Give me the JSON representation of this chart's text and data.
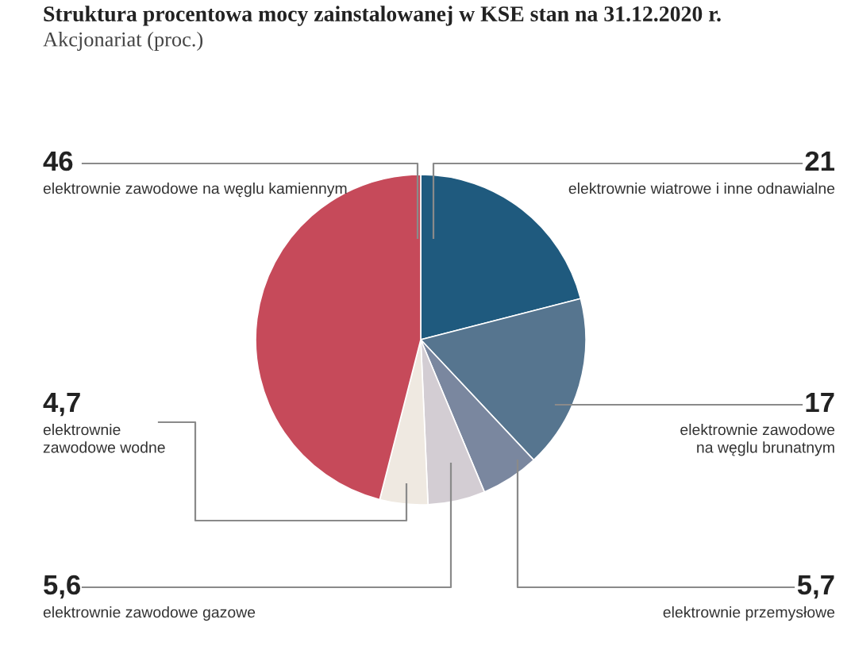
{
  "chart_data": {
    "type": "pie",
    "title": "Struktura procentowa mocy zainstalowanej w KSE stan na 31.12.2020 r.",
    "subtitle": "Akcjonariat (proc.)",
    "categories": [
      "elektrownie wiatrowe i inne odnawialne",
      "elektrownie zawodowe\nna węglu brunatnym",
      "elektrownie przemysłowe",
      "elektrownie zawodowe gazowe",
      "elektrownie\nzawodowe wodne",
      "elektrownie zawodowe na węglu kamiennym"
    ],
    "values": [
      21,
      17,
      5.7,
      5.6,
      4.7,
      46
    ],
    "value_labels": [
      "21",
      "17",
      "5,7",
      "5,6",
      "4,7",
      "46"
    ],
    "colors": [
      "#1f5a7e",
      "#56758f",
      "#7a879f",
      "#d3cdd3",
      "#efe9e1",
      "#c64a5a"
    ],
    "legend": false
  }
}
